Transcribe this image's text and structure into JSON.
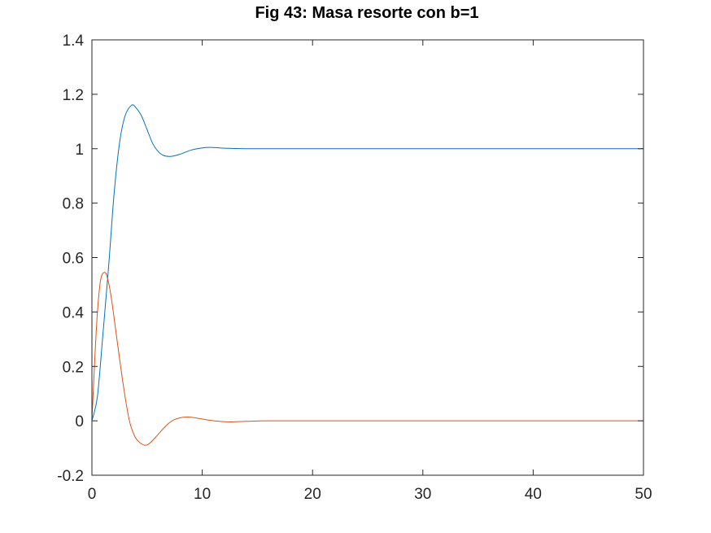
{
  "chart_data": {
    "type": "line",
    "title": "Fig 43: Masa resorte con b=1",
    "xlabel": "",
    "ylabel": "",
    "xlim": [
      0,
      50
    ],
    "ylim": [
      -0.2,
      1.4
    ],
    "xticks": [
      0,
      10,
      20,
      30,
      40,
      50
    ],
    "yticks": [
      -0.2,
      0,
      0.2,
      0.4,
      0.6,
      0.8,
      1,
      1.2,
      1.4
    ],
    "xtick_labels": [
      "0",
      "10",
      "20",
      "30",
      "40",
      "50"
    ],
    "ytick_labels": [
      "-0.2",
      "0",
      "0.2",
      "0.4",
      "0.6",
      "0.8",
      "1",
      "1.2",
      "1.4"
    ],
    "grid": false,
    "legend": "none",
    "series": [
      {
        "color": "#0072bd",
        "x": [
          0,
          0.5,
          1,
          1.5,
          2,
          2.5,
          3,
          3.6,
          4,
          4.5,
          5,
          5.5,
          6,
          6.5,
          7.2,
          8,
          9,
          10,
          10.8,
          12,
          14,
          16,
          20,
          30,
          40,
          50
        ],
        "y": [
          0,
          0.09,
          0.32,
          0.56,
          0.83,
          1.02,
          1.12,
          1.16,
          1.15,
          1.12,
          1.07,
          1.02,
          0.99,
          0.975,
          0.972,
          0.98,
          0.995,
          1.003,
          1.005,
          1.002,
          1.0,
          1.0,
          1.0,
          1.0,
          1.0,
          1.0
        ]
      },
      {
        "color": "#d95319",
        "x": [
          0,
          0.25,
          0.5,
          0.8,
          1.2,
          1.5,
          1.8,
          2.2,
          2.6,
          3,
          3.4,
          3.8,
          4.2,
          4.8,
          5.3,
          6,
          6.8,
          7.5,
          8.5,
          9.5,
          10.5,
          11.5,
          12.5,
          14,
          16,
          20,
          30,
          40,
          50
        ],
        "y": [
          0,
          0.22,
          0.4,
          0.52,
          0.545,
          0.51,
          0.44,
          0.32,
          0.2,
          0.09,
          0.0,
          -0.05,
          -0.075,
          -0.09,
          -0.08,
          -0.05,
          -0.015,
          0.005,
          0.014,
          0.01,
          0.003,
          -0.002,
          -0.004,
          -0.002,
          0.0,
          0.0,
          0.0,
          0.0,
          0.0
        ]
      }
    ]
  }
}
